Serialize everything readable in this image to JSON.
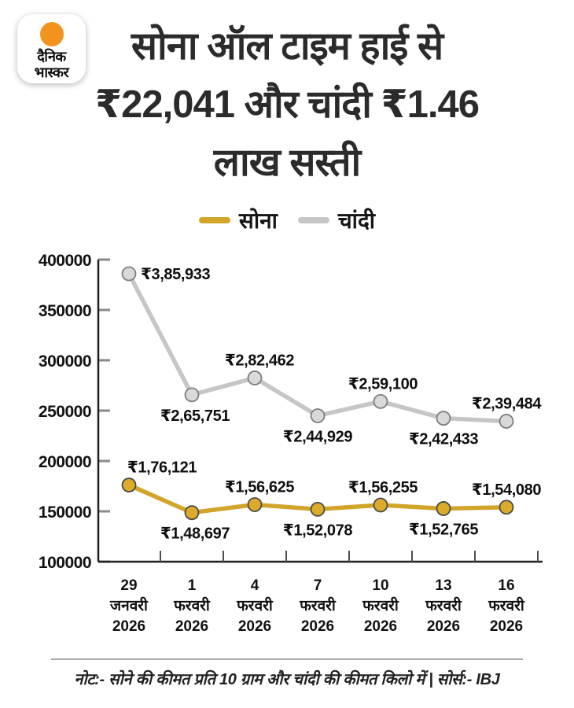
{
  "logo": {
    "line1": "दैनिक",
    "line2": "भास्कर",
    "dot_color": "#f2931e"
  },
  "title": {
    "text": "सोना ऑल टाइम हाई से ₹22,041 और चांदी ₹1.46 लाख सस्ती",
    "lines": [
      "सोना ऑल टाइम हाई से",
      "₹22,041 और चांदी ₹1.46",
      "लाख सस्ती"
    ]
  },
  "chart_data": {
    "type": "line",
    "title": "सोना ऑल टाइम हाई से ₹22,041 और चांदी ₹1.46 लाख सस्ती",
    "x_tick_labels": [
      [
        "29",
        "जनवरी",
        "2026"
      ],
      [
        "1",
        "फरवरी",
        "2026"
      ],
      [
        "4",
        "फरवरी",
        "2026"
      ],
      [
        "7",
        "फरवरी",
        "2026"
      ],
      [
        "10",
        "फरवरी",
        "2026"
      ],
      [
        "13",
        "फरवरी",
        "2026"
      ],
      [
        "16",
        "फरवरी",
        "2026"
      ]
    ],
    "series": [
      {
        "key": "gold",
        "name": "सोना",
        "color": "#d1a52a",
        "marker_fill": "#dcab2b",
        "marker_stroke": "#4a4a4a",
        "values": [
          176121,
          148697,
          156625,
          152078,
          156255,
          152765,
          154080
        ],
        "point_labels": [
          "₹1,76,121",
          "₹1,48,697",
          "₹1,56,625",
          "₹1,52,078",
          "₹1,56,255",
          "₹1,52,765",
          "₹1,54,080"
        ],
        "label_sides": [
          "above",
          "below",
          "above",
          "below",
          "above",
          "below",
          "above"
        ],
        "label_dx": [
          42,
          4,
          6,
          0,
          3,
          0,
          0
        ]
      },
      {
        "key": "silver",
        "name": "चांदी",
        "color": "#c6c6c6",
        "marker_fill": "#d9d9d9",
        "marker_stroke": "#7d7d7d",
        "values": [
          385933,
          265751,
          282462,
          244929,
          259100,
          242433,
          239484
        ],
        "point_labels": [
          "₹3,85,933",
          "₹2,65,751",
          "₹2,82,462",
          "₹2,44,929",
          "₹2,59,100",
          "₹2,42,433",
          "₹2,39,484"
        ],
        "label_sides": [
          "right",
          "below",
          "above",
          "below",
          "above",
          "below",
          "above"
        ],
        "label_dx": [
          0,
          4,
          6,
          0,
          3,
          0,
          0
        ]
      }
    ],
    "ylim": [
      100000,
      400000
    ],
    "y_ticks": [
      "100000",
      "150000",
      "200000",
      "250000",
      "300000",
      "350000",
      "400000"
    ],
    "grid": false,
    "legend_position": "top"
  },
  "footer": {
    "note": "नोट:- सोने की कीमत प्रति 10 ग्राम और चांदी की कीमत किलो में | सोर्स:- IBJ"
  }
}
